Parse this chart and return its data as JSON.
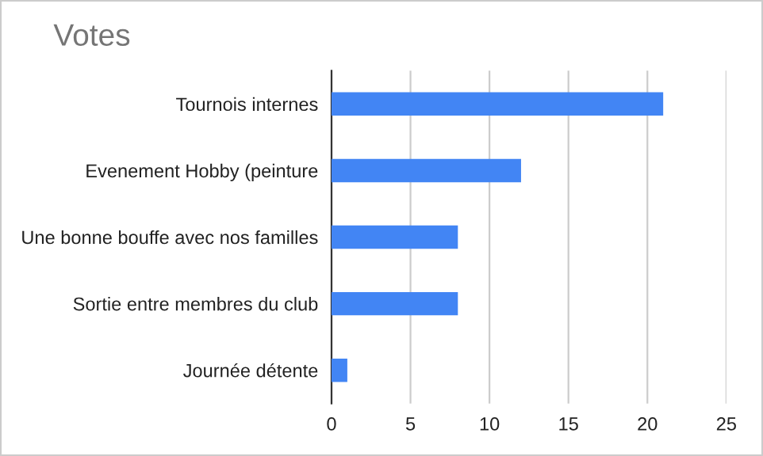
{
  "chart_data": {
    "type": "bar",
    "orientation": "horizontal",
    "title": "Votes",
    "categories": [
      "Tournois internes",
      "Evenement Hobby (peinture",
      "Une bonne bouffe avec nos familles",
      "Sortie entre membres du club",
      "Journée détente"
    ],
    "values": [
      21,
      12,
      8,
      8,
      1
    ],
    "color": "#4285f4",
    "xlim": [
      0,
      25
    ],
    "xticks": [
      0,
      5,
      10,
      15,
      20,
      25
    ],
    "grid": "x",
    "legend": false
  }
}
